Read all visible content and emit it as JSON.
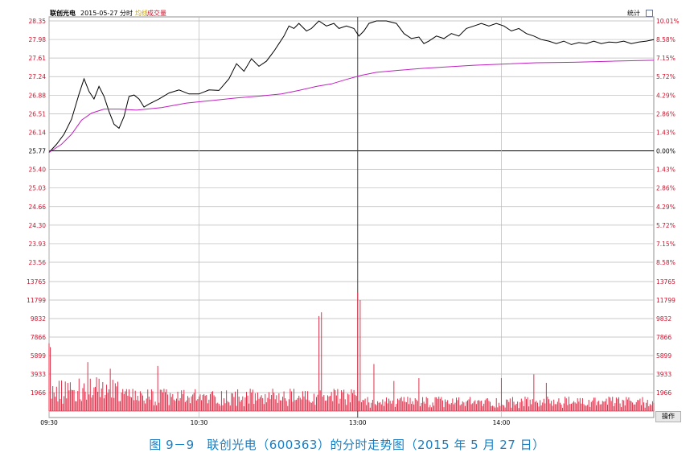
{
  "header": {
    "stock_name": "联创光电",
    "date_label": "2015-05-27 分时",
    "avg_label": "均线",
    "volume_label": "成交量",
    "stats_label": "统计"
  },
  "footer": {
    "operate_label": "操作"
  },
  "caption": "图 9－9　联创光电（600363）的分时走势图（2015 年 5 月 27 日）",
  "colors": {
    "price_line": "#000000",
    "avg_line": "#c020c0",
    "volume_bar": "#e0304a",
    "red_text": "#d0102a",
    "grid": "#b8b8b8",
    "ref_line": "#000000"
  },
  "chart_data": {
    "type": "line",
    "time_ticks": [
      "09:30",
      "10:30",
      "13:00",
      "14:00"
    ],
    "price_axis": {
      "left_labels": [
        "28.35",
        "27.98",
        "27.61",
        "27.24",
        "26.88",
        "26.51",
        "26.14",
        "25.77",
        "25.40",
        "25.03",
        "24.66",
        "24.30",
        "23.93",
        "23.56"
      ],
      "right_labels": [
        "10.01%",
        "8.58%",
        "7.15%",
        "5.72%",
        "4.29%",
        "2.86%",
        "1.43%",
        "0.00%",
        "1.43%",
        "2.86%",
        "4.29%",
        "5.72%",
        "7.15%",
        "8.58%"
      ],
      "ylim": [
        23.56,
        28.35
      ],
      "prev_close": 25.77
    },
    "volume_axis": {
      "labels": [
        "13765",
        "11799",
        "9832",
        "7866",
        "5899",
        "3933",
        "1966"
      ],
      "ylim": [
        0,
        13765
      ]
    },
    "series": [
      {
        "key": "price",
        "points": [
          [
            0,
            25.74
          ],
          [
            6,
            25.9
          ],
          [
            12,
            26.1
          ],
          [
            18,
            26.4
          ],
          [
            24,
            26.9
          ],
          [
            28,
            27.2
          ],
          [
            32,
            26.95
          ],
          [
            36,
            26.8
          ],
          [
            40,
            27.05
          ],
          [
            44,
            26.85
          ],
          [
            48,
            26.55
          ],
          [
            52,
            26.3
          ],
          [
            56,
            26.22
          ],
          [
            60,
            26.45
          ],
          [
            64,
            26.85
          ],
          [
            68,
            26.88
          ],
          [
            72,
            26.8
          ],
          [
            76,
            26.64
          ],
          [
            80,
            26.7
          ],
          [
            88,
            26.8
          ],
          [
            96,
            26.92
          ],
          [
            104,
            26.98
          ],
          [
            112,
            26.9
          ],
          [
            120,
            26.9
          ],
          [
            128,
            26.98
          ],
          [
            136,
            26.97
          ],
          [
            144,
            27.2
          ],
          [
            150,
            27.5
          ],
          [
            156,
            27.35
          ],
          [
            162,
            27.6
          ],
          [
            168,
            27.45
          ],
          [
            174,
            27.55
          ],
          [
            180,
            27.75
          ],
          [
            184,
            27.9
          ],
          [
            188,
            28.05
          ],
          [
            192,
            28.25
          ],
          [
            196,
            28.2
          ],
          [
            200,
            28.3
          ],
          [
            206,
            28.15
          ],
          [
            210,
            28.2
          ],
          [
            216,
            28.35
          ],
          [
            222,
            28.25
          ],
          [
            228,
            28.3
          ],
          [
            232,
            28.2
          ],
          [
            238,
            28.25
          ],
          [
            244,
            28.2
          ],
          [
            248,
            28.05
          ],
          [
            252,
            28.15
          ],
          [
            256,
            28.3
          ],
          [
            262,
            28.35
          ],
          [
            270,
            28.35
          ],
          [
            278,
            28.3
          ],
          [
            284,
            28.1
          ],
          [
            290,
            28.0
          ],
          [
            296,
            28.03
          ],
          [
            300,
            27.9
          ],
          [
            304,
            27.95
          ],
          [
            310,
            28.05
          ],
          [
            316,
            28.0
          ],
          [
            322,
            28.1
          ],
          [
            328,
            28.05
          ],
          [
            334,
            28.2
          ],
          [
            340,
            28.25
          ],
          [
            346,
            28.3
          ],
          [
            352,
            28.25
          ],
          [
            358,
            28.3
          ],
          [
            364,
            28.25
          ],
          [
            370,
            28.15
          ],
          [
            376,
            28.2
          ],
          [
            382,
            28.1
          ],
          [
            388,
            28.05
          ],
          [
            394,
            27.98
          ],
          [
            400,
            27.95
          ],
          [
            406,
            27.9
          ],
          [
            412,
            27.95
          ],
          [
            418,
            27.88
          ],
          [
            424,
            27.92
          ],
          [
            430,
            27.9
          ],
          [
            436,
            27.95
          ],
          [
            442,
            27.9
          ],
          [
            448,
            27.93
          ],
          [
            454,
            27.92
          ],
          [
            460,
            27.95
          ],
          [
            466,
            27.9
          ],
          [
            472,
            27.93
          ],
          [
            478,
            27.95
          ],
          [
            484,
            27.98
          ]
        ]
      },
      {
        "key": "average",
        "points": [
          [
            0,
            25.74
          ],
          [
            10,
            25.9
          ],
          [
            18,
            26.1
          ],
          [
            26,
            26.38
          ],
          [
            34,
            26.52
          ],
          [
            44,
            26.6
          ],
          [
            56,
            26.6
          ],
          [
            70,
            26.58
          ],
          [
            90,
            26.63
          ],
          [
            110,
            26.72
          ],
          [
            130,
            26.77
          ],
          [
            150,
            26.82
          ],
          [
            170,
            26.86
          ],
          [
            186,
            26.9
          ],
          [
            200,
            26.97
          ],
          [
            214,
            27.05
          ],
          [
            226,
            27.1
          ],
          [
            238,
            27.19
          ],
          [
            250,
            27.27
          ],
          [
            262,
            27.33
          ],
          [
            280,
            27.37
          ],
          [
            300,
            27.41
          ],
          [
            320,
            27.44
          ],
          [
            340,
            27.47
          ],
          [
            360,
            27.49
          ],
          [
            390,
            27.52
          ],
          [
            420,
            27.53
          ],
          [
            450,
            27.55
          ],
          [
            484,
            27.57
          ]
        ]
      }
    ],
    "volume_spikes": [
      [
        0,
        7200
      ],
      [
        1,
        6800
      ],
      [
        31,
        5200
      ],
      [
        49,
        4500
      ],
      [
        87,
        4800
      ],
      [
        216,
        10100
      ],
      [
        218,
        10500
      ],
      [
        247,
        12600
      ],
      [
        249,
        11800
      ],
      [
        260,
        5000
      ],
      [
        276,
        3200
      ],
      [
        296,
        3500
      ],
      [
        362,
        3500
      ],
      [
        388,
        3900
      ],
      [
        398,
        3000
      ]
    ]
  }
}
